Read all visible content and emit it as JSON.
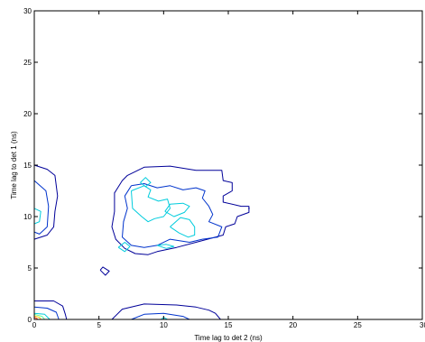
{
  "chart_data": {
    "type": "contour",
    "title": "",
    "xlabel": "Time lag to det 2 (ns)",
    "ylabel": "Time lag to det 1 (ns)",
    "xlim": [
      0,
      30
    ],
    "ylim": [
      0,
      30
    ],
    "xticks": [
      0,
      5,
      10,
      15,
      20,
      25,
      30
    ],
    "yticks": [
      0,
      5,
      10,
      15,
      20,
      25,
      30
    ],
    "grid": false,
    "levels": [
      {
        "name": "level-1",
        "color": "#000099",
        "contours": [
          [
            [
              7.2,
              14.0
            ],
            [
              8.5,
              14.8
            ],
            [
              10.5,
              14.9
            ],
            [
              12.5,
              14.5
            ],
            [
              14.5,
              14.5
            ],
            [
              14.6,
              13.5
            ],
            [
              15.3,
              13.3
            ],
            [
              15.3,
              12.5
            ],
            [
              14.6,
              12.0
            ],
            [
              14.6,
              11.4
            ],
            [
              16.0,
              11.0
            ],
            [
              16.6,
              11.0
            ],
            [
              16.6,
              10.4
            ],
            [
              15.7,
              10.0
            ],
            [
              15.5,
              9.3
            ],
            [
              14.8,
              9.0
            ],
            [
              14.6,
              8.2
            ],
            [
              12.5,
              7.5
            ],
            [
              11.0,
              7.0
            ],
            [
              9.5,
              6.6
            ],
            [
              8.8,
              6.3
            ],
            [
              7.8,
              6.4
            ],
            [
              7.0,
              6.9
            ],
            [
              6.3,
              7.8
            ],
            [
              6.0,
              9.0
            ],
            [
              6.2,
              10.5
            ],
            [
              6.2,
              12.3
            ],
            [
              6.8,
              13.5
            ],
            [
              7.2,
              14.0
            ]
          ],
          [
            [
              0.0,
              15.0
            ],
            [
              1.0,
              14.6
            ],
            [
              1.6,
              14.0
            ],
            [
              1.8,
              12.0
            ],
            [
              1.6,
              10.5
            ],
            [
              1.5,
              9.0
            ],
            [
              1.0,
              8.2
            ],
            [
              0.0,
              7.8
            ]
          ],
          [
            [
              5.1,
              4.8
            ],
            [
              5.5,
              4.3
            ],
            [
              5.8,
              4.7
            ],
            [
              5.3,
              5.1
            ],
            [
              5.1,
              4.8
            ]
          ],
          [
            [
              0.0,
              1.8
            ],
            [
              1.5,
              1.8
            ],
            [
              2.2,
              1.3
            ],
            [
              2.4,
              0.5
            ],
            [
              2.5,
              0.0
            ]
          ],
          [
            [
              6.0,
              0.0
            ],
            [
              6.8,
              1.0
            ],
            [
              8.5,
              1.5
            ],
            [
              11.0,
              1.4
            ],
            [
              12.5,
              1.2
            ],
            [
              13.5,
              0.9
            ],
            [
              14.0,
              0.6
            ],
            [
              14.4,
              0.0
            ]
          ]
        ]
      },
      {
        "name": "level-2",
        "color": "#0033cc",
        "contours": [
          [
            [
              7.5,
              13.0
            ],
            [
              8.5,
              13.2
            ],
            [
              9.5,
              12.8
            ],
            [
              10.5,
              13.0
            ],
            [
              11.5,
              12.6
            ],
            [
              12.5,
              12.8
            ],
            [
              13.2,
              12.5
            ],
            [
              13.0,
              11.8
            ],
            [
              13.5,
              11.0
            ],
            [
              13.8,
              10.2
            ],
            [
              13.5,
              9.5
            ],
            [
              14.5,
              9.0
            ],
            [
              14.2,
              8.0
            ],
            [
              13.0,
              7.8
            ],
            [
              12.0,
              7.5
            ],
            [
              10.5,
              7.8
            ],
            [
              9.5,
              7.2
            ],
            [
              8.5,
              7.0
            ],
            [
              7.5,
              7.2
            ],
            [
              6.8,
              8.0
            ],
            [
              6.9,
              9.5
            ],
            [
              7.2,
              10.8
            ],
            [
              7.0,
              12.0
            ],
            [
              7.5,
              13.0
            ]
          ],
          [
            [
              0.0,
              13.5
            ],
            [
              0.9,
              12.5
            ],
            [
              1.1,
              11.0
            ],
            [
              1.0,
              9.0
            ],
            [
              0.4,
              8.3
            ],
            [
              0.0,
              8.5
            ]
          ],
          [
            [
              0.0,
              1.2
            ],
            [
              1.0,
              1.1
            ],
            [
              1.7,
              0.7
            ],
            [
              1.9,
              0.0
            ]
          ],
          [
            [
              7.5,
              0.0
            ],
            [
              8.5,
              0.5
            ],
            [
              10.0,
              0.6
            ],
            [
              11.5,
              0.3
            ],
            [
              12.0,
              0.0
            ]
          ]
        ]
      },
      {
        "name": "level-3",
        "color": "#00ccdd",
        "contours": [
          [
            [
              7.5,
              12.5
            ],
            [
              8.5,
              13.0
            ],
            [
              9.0,
              12.6
            ],
            [
              8.8,
              11.9
            ],
            [
              9.6,
              11.5
            ],
            [
              10.3,
              11.7
            ],
            [
              10.5,
              10.8
            ],
            [
              10.0,
              10.0
            ],
            [
              9.3,
              9.8
            ],
            [
              8.8,
              9.5
            ],
            [
              8.3,
              10.0
            ],
            [
              7.6,
              10.8
            ],
            [
              7.5,
              12.5
            ]
          ],
          [
            [
              8.2,
              13.3
            ],
            [
              8.6,
              13.8
            ],
            [
              9.0,
              13.3
            ],
            [
              8.6,
              12.9
            ],
            [
              8.2,
              13.3
            ]
          ],
          [
            [
              10.1,
              10.5
            ],
            [
              10.5,
              11.2
            ],
            [
              11.5,
              11.3
            ],
            [
              12.0,
              11.0
            ],
            [
              11.6,
              10.4
            ],
            [
              10.8,
              10.0
            ],
            [
              10.1,
              10.5
            ]
          ],
          [
            [
              10.5,
              9.0
            ],
            [
              11.3,
              9.9
            ],
            [
              12.0,
              9.7
            ],
            [
              12.4,
              9.0
            ],
            [
              12.4,
              8.2
            ],
            [
              11.9,
              8.0
            ],
            [
              11.2,
              8.4
            ],
            [
              10.5,
              9.0
            ]
          ],
          [
            [
              9.5,
              7.2
            ],
            [
              10.2,
              7.3
            ],
            [
              10.8,
              7.1
            ],
            [
              10.2,
              6.9
            ],
            [
              9.5,
              7.2
            ]
          ],
          [
            [
              6.5,
              7.0
            ],
            [
              7.0,
              7.5
            ],
            [
              7.4,
              7.1
            ],
            [
              7.0,
              6.6
            ],
            [
              6.5,
              7.0
            ]
          ],
          [
            [
              0.0,
              10.8
            ],
            [
              0.5,
              10.5
            ],
            [
              0.4,
              9.5
            ],
            [
              0.0,
              9.3
            ]
          ],
          [
            [
              0.0,
              0.6
            ],
            [
              0.8,
              0.5
            ],
            [
              1.2,
              0.0
            ]
          ],
          [
            [
              9.8,
              0.0
            ],
            [
              10.0,
              0.2
            ],
            [
              10.3,
              0.0
            ]
          ]
        ]
      },
      {
        "name": "level-4",
        "color": "#66ff99",
        "contours": [
          [
            [
              0.0,
              0.5
            ],
            [
              0.6,
              0.3
            ],
            [
              0.8,
              0.0
            ]
          ]
        ]
      },
      {
        "name": "level-5",
        "color": "#ffcc00",
        "contours": [
          [
            [
              0.0,
              0.35
            ],
            [
              0.4,
              0.2
            ],
            [
              0.5,
              0.0
            ]
          ]
        ]
      },
      {
        "name": "level-6",
        "color": "#ff3300",
        "contours": [
          [
            [
              0.0,
              0.2
            ],
            [
              0.2,
              0.1
            ],
            [
              0.25,
              0.0
            ]
          ]
        ]
      }
    ],
    "points": [
      {
        "x": 16.6,
        "y": 10.8,
        "color": "#000099"
      }
    ]
  }
}
